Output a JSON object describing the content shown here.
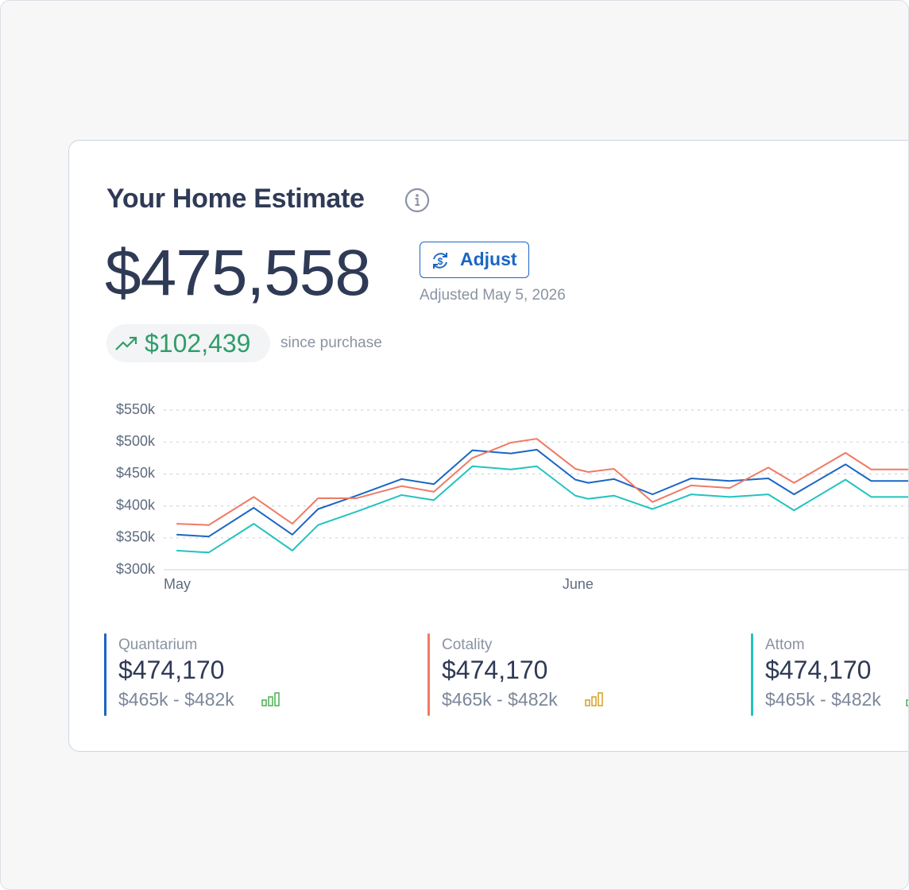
{
  "header": {
    "title": "Your Home Estimate",
    "estimate": "$475,558",
    "adjust_button": "Adjust",
    "adjusted_date": "Adjusted May 5, 2026",
    "change": "$102,439",
    "change_caption": "since purchase"
  },
  "providers": [
    {
      "value": "$474,170",
      "range": "$465k - $482k"
    },
    {
      "value": "$474,170",
      "range": "$465k - $482k"
    },
    {
      "value": "$474,170",
      "range": "$465k - $482k"
    }
  ],
  "chart_data": {
    "type": "line",
    "x": [
      1,
      3.5,
      7,
      10,
      12,
      15,
      18.5,
      21,
      24,
      27,
      29,
      32,
      33,
      35,
      38,
      41,
      44,
      47,
      49,
      53,
      55,
      58
    ],
    "xlim": [
      0,
      58
    ],
    "xticks": [
      {
        "value": 0,
        "label": "May"
      },
      {
        "value": 31,
        "label": "June"
      }
    ],
    "ylim": [
      300000,
      550000
    ],
    "yticks": [
      {
        "value": 300000,
        "label": "$300k"
      },
      {
        "value": 350000,
        "label": "$350k"
      },
      {
        "value": 400000,
        "label": "$400k"
      },
      {
        "value": 450000,
        "label": "$450k"
      },
      {
        "value": 500000,
        "label": "$500k"
      },
      {
        "value": 550000,
        "label": "$550k"
      }
    ],
    "grid": true,
    "series": [
      {
        "name": "Quantarium",
        "color": "#1a66c4",
        "values": [
          355000,
          352000,
          397000,
          355000,
          395000,
          416000,
          442000,
          434000,
          487000,
          482000,
          488000,
          441000,
          436000,
          442000,
          418000,
          443000,
          439000,
          443000,
          418000,
          465000,
          439000,
          439000
        ]
      },
      {
        "name": "Cotality",
        "color": "#f07a64",
        "values": [
          372000,
          370000,
          414000,
          372000,
          412000,
          412000,
          431000,
          422000,
          475000,
          499000,
          505000,
          458000,
          453000,
          458000,
          406000,
          432000,
          428000,
          460000,
          436000,
          483000,
          457000,
          457000
        ]
      },
      {
        "name": "Attom",
        "color": "#22c3c0",
        "values": [
          330000,
          327000,
          372000,
          330000,
          370000,
          391000,
          417000,
          409000,
          462000,
          457000,
          462000,
          416000,
          411000,
          416000,
          395000,
          418000,
          414000,
          418000,
          393000,
          441000,
          414000,
          414000
        ]
      }
    ]
  }
}
